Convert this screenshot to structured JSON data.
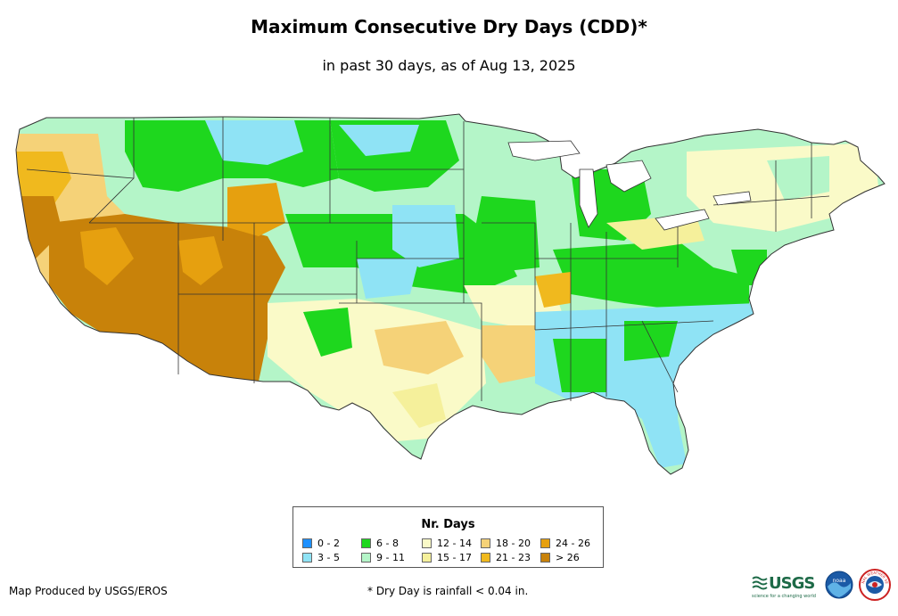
{
  "title": "Maximum Consecutive Dry Days (CDD)*",
  "subtitle": "in past 30 days, as of Aug 13, 2025",
  "legend": {
    "title": "Nr. Days",
    "items": [
      {
        "label": "0 - 2",
        "color": "#1e90ff"
      },
      {
        "label": "3 - 5",
        "color": "#8fe3f5"
      },
      {
        "label": "6 - 8",
        "color": "#1ed71e"
      },
      {
        "label": "9 - 11",
        "color": "#b4f5c8"
      },
      {
        "label": "12 - 14",
        "color": "#fafac8"
      },
      {
        "label": "15 - 17",
        "color": "#f5f09b"
      },
      {
        "label": "18 - 20",
        "color": "#f5d278"
      },
      {
        "label": "21 - 23",
        "color": "#f0b91e"
      },
      {
        "label": "24 - 26",
        "color": "#e6a00f"
      },
      {
        "label": "> 26",
        "color": "#c8820a"
      }
    ]
  },
  "credit": "Map Produced by USGS/EROS",
  "footnote": "* Dry Day is rainfall < 0.04 in.",
  "logos": {
    "usgs_text": "USGS",
    "usgs_tagline": "science for a changing world",
    "noaa_text": "noaa",
    "nws_text": "NATIONAL WEATHER SERVICE"
  }
}
